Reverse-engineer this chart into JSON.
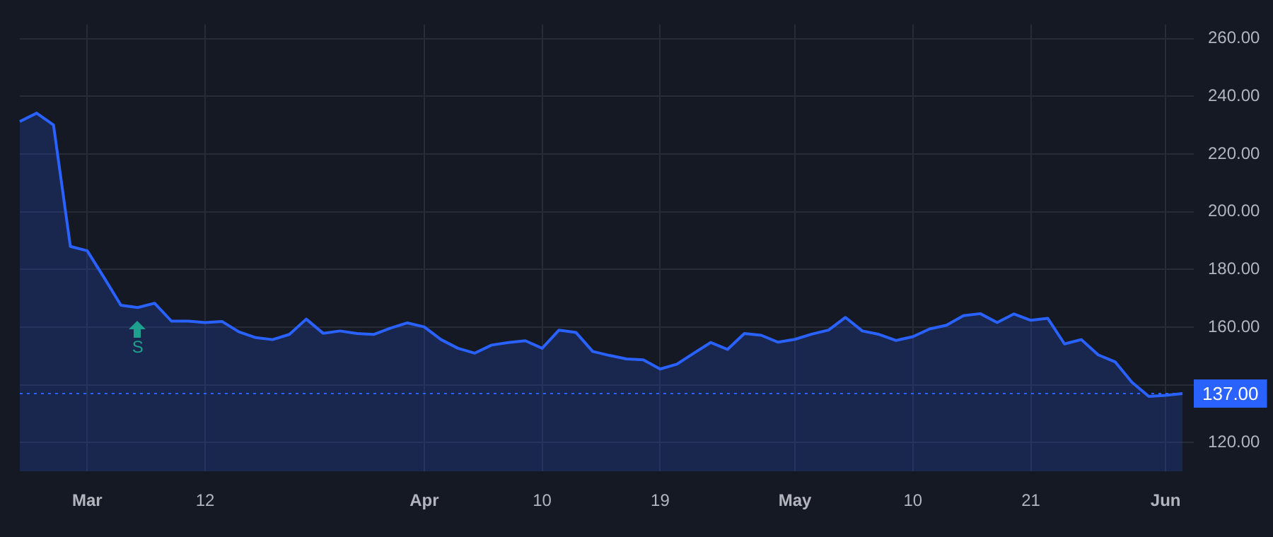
{
  "chart_data": {
    "type": "area",
    "categories": [
      null,
      null,
      null,
      null,
      "Mar",
      null,
      null,
      null,
      null,
      null,
      null,
      "12",
      null,
      null,
      null,
      null,
      null,
      null,
      null,
      null,
      null,
      null,
      null,
      null,
      "Apr",
      null,
      null,
      null,
      null,
      null,
      null,
      "10",
      null,
      null,
      null,
      null,
      null,
      null,
      "19",
      null,
      null,
      null,
      null,
      null,
      null,
      null,
      "May",
      null,
      null,
      null,
      null,
      null,
      null,
      "10",
      null,
      null,
      null,
      null,
      null,
      null,
      "21",
      null,
      null,
      null,
      null,
      null,
      null,
      null,
      "Jun",
      null
    ],
    "series": [
      {
        "color": "#2962ff",
        "values": [
          231.3,
          234.2,
          230.1,
          188,
          186.5,
          177.2,
          167.6,
          166.8,
          168.3,
          162.1,
          162.1,
          161.6,
          162,
          158.4,
          156.4,
          155.7,
          157.5,
          162.8,
          157.9,
          158.7,
          157.8,
          157.5,
          159.7,
          161.5,
          160.1,
          155.7,
          152.7,
          151,
          153.8,
          154.7,
          155.3,
          152.7,
          159,
          158.2,
          151.6,
          150.2,
          149,
          148.7,
          145.5,
          147.2,
          151,
          154.7,
          152.3,
          157.8,
          157.2,
          154.8,
          155.8,
          157.6,
          159,
          163.4,
          158.7,
          157.5,
          155.4,
          156.7,
          159.4,
          160.7,
          164,
          164.7,
          161.6,
          164.6,
          162.4,
          163.1,
          154.2,
          155.7,
          150.4,
          148,
          140.9,
          136,
          136.4,
          137
        ]
      }
    ],
    "ylim": [
      110,
      265
    ],
    "yticks": [
      {
        "value": 120,
        "label": "120.00"
      },
      {
        "value": 140,
        "label": null
      },
      {
        "value": 160,
        "label": "160.00"
      },
      {
        "value": 180,
        "label": "180.00"
      },
      {
        "value": 200,
        "label": "200.00"
      },
      {
        "value": 220,
        "label": "220.00"
      },
      {
        "value": 240,
        "label": "240.00"
      },
      {
        "value": 260,
        "label": "260.00"
      }
    ],
    "ref_lines": [
      {
        "axis": "y",
        "value": 137,
        "label": "137.00",
        "color": "#2962ff",
        "line_style": "dotted"
      }
    ],
    "annotations": [
      "S"
    ],
    "grid": true,
    "legend": false,
    "marker": "none",
    "line_style": "solid"
  }
}
